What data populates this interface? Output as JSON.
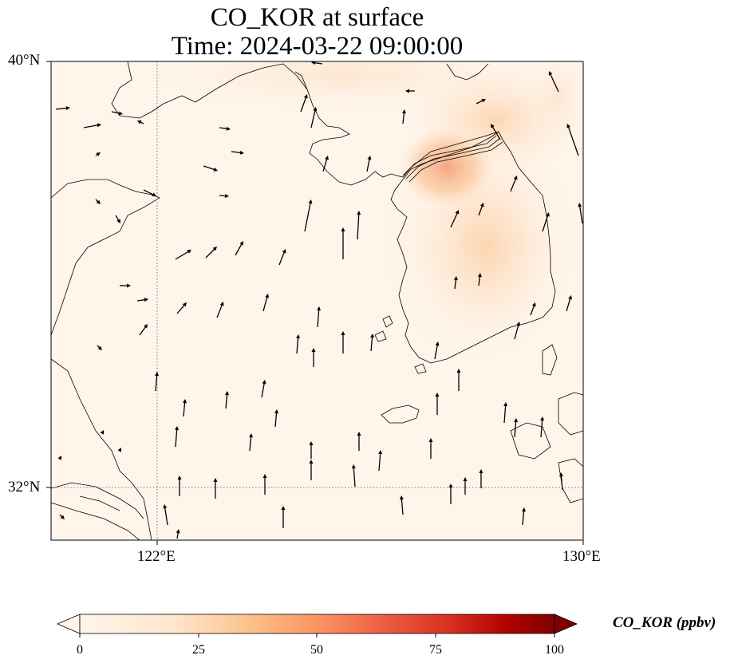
{
  "title_line1": "CO_KOR at surface",
  "title_line2": "Time: 2024-03-22 09:00:00",
  "map": {
    "extent": {
      "lon_min": 120.0,
      "lon_max": 130.0,
      "lat_min": 31.0,
      "lat_max": 40.0
    },
    "gridlines": {
      "lons": [
        122,
        130
      ],
      "lats": [
        32,
        40
      ],
      "style": "dotted"
    },
    "background_color": "#fff5eb",
    "land_fill": "none",
    "coastline_color": "#000000",
    "wind_vectors": true
  },
  "axis_ticks": {
    "lat": [
      "40°N",
      "32°N"
    ],
    "lon": [
      "122°E",
      "130°E"
    ]
  },
  "colorbar": {
    "label": "CO_KOR (ppbv)",
    "ticks": [
      "0",
      "25",
      "50",
      "75",
      "100"
    ],
    "min": 0,
    "max": 100,
    "extend": "both",
    "cmap": "OrRd-like",
    "stops": [
      "#fff5eb",
      "#fdd9b0",
      "#fdab6c",
      "#f06a3f",
      "#c41c0e",
      "#7f0000"
    ]
  }
}
